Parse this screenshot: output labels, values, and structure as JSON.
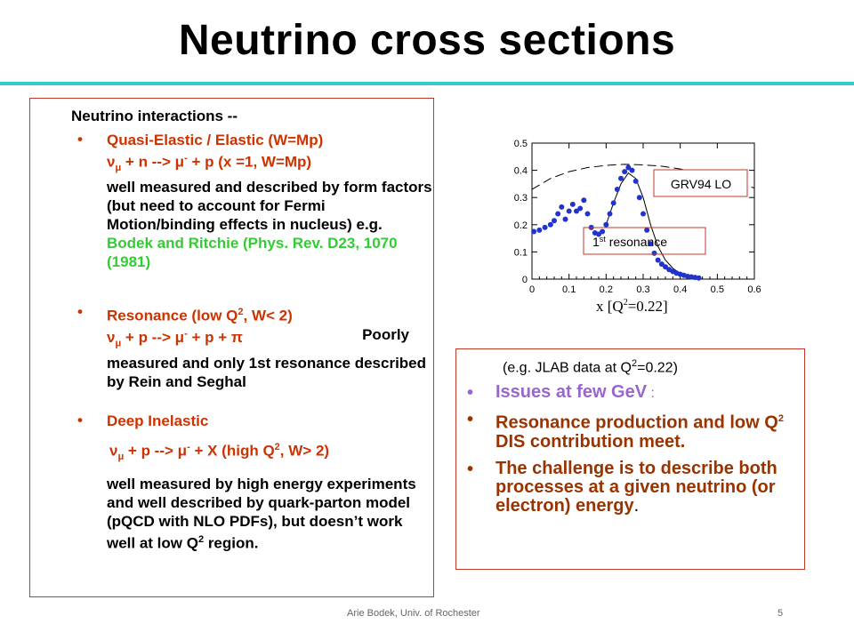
{
  "slide": {
    "title": "Neutrino cross sections",
    "footer_left": "Arie Bodek,  Univ. of Rochester",
    "page_number": "5"
  },
  "left": {
    "heading": "Neutrino interactions --",
    "b1": {
      "l1": "Quasi-Elastic / Elastic    (W=Mp)",
      "l2_nu": "ν",
      "l2_mu": "μ",
      "l2_a": " + n   -->  ",
      "l2_mu2": "μ",
      "l2_minus": "-",
      "l2_b": " + p    (x =1, W=Mp)",
      "black": "well  measured and described by form factors (but need to account for Fermi Motion/binding effects in nucleus)   e.g.",
      "green": " Bodek and Ritchie (Phys. Rev. D23, 1070 (1981)"
    },
    "b2": {
      "l1a": "Resonance        (low Q",
      "l1_sup": "2",
      "l1b": ", W< 2)",
      "l2_nu": "ν",
      "l2_mu": "μ",
      "l2_a": " + p -->  ",
      "l2_mu2": "μ",
      "l2_minus": "-",
      "l2_b": " + p + ",
      "l2_pi": "π",
      "poorly": "Poorly",
      "black": "measured and only 1st resonance described by Rein and Seghal"
    },
    "b3": {
      "l1": "Deep Inelastic",
      "l2_nu": "ν",
      "l2_mu": "μ",
      "l2_a": " + p   -->  ",
      "l2_mu2": "μ",
      "l2_minus": "-",
      "l2_b": " + X    (high Q",
      "l2_sup": "2",
      "l2_c": ", W> 2)",
      "black1": "well measured by high energy experiments and well described by quark-parton model (pQCD with NLO PDFs), but doesn’t work well at low Q",
      "black_sup": "2",
      "black2": " region."
    }
  },
  "right": {
    "note_a": "(e.g. JLAB data  at Q",
    "note_sup": "2",
    "note_b": "=0.22)",
    "i1": "Issues at few GeV",
    "i1_colon": " :",
    "i2a": "Resonance production  and low Q",
    "i2_sup": "2",
    "i2b": " DIS contribution meet.",
    "i3a": "The challenge is to describe both processes at a given neutrino (or electron) energy",
    "i3b": "."
  },
  "chart_data": {
    "type": "scatter",
    "xlabel_a": "x  [Q",
    "xlabel_sup": "2",
    "xlabel_b": "=0.22]",
    "xlim": [
      0,
      0.6
    ],
    "ylim": [
      0,
      0.5
    ],
    "x_ticks": [
      "0",
      "0.1",
      "0.2",
      "0.3",
      "0.4",
      "0.5",
      "0.6"
    ],
    "y_ticks": [
      "0",
      "0.1",
      "0.2",
      "0.3",
      "0.4",
      "0.5"
    ],
    "annotations": {
      "grv": "GRV94 LO",
      "res_a": "1",
      "res_sup": "st",
      "res_b": " resonance"
    },
    "series": [
      {
        "values_x": [
          0.005,
          0.02,
          0.035,
          0.05,
          0.06,
          0.07,
          0.08,
          0.09,
          0.1,
          0.11,
          0.12,
          0.13,
          0.14,
          0.15,
          0.16,
          0.17,
          0.18,
          0.19,
          0.2,
          0.21,
          0.22,
          0.23,
          0.24,
          0.25,
          0.26,
          0.27,
          0.28,
          0.29,
          0.3,
          0.31,
          0.32,
          0.33,
          0.34,
          0.35,
          0.36,
          0.37,
          0.38,
          0.39,
          0.4,
          0.41,
          0.42,
          0.43,
          0.44,
          0.45
        ],
        "values_y": [
          0.175,
          0.18,
          0.19,
          0.2,
          0.215,
          0.24,
          0.265,
          0.22,
          0.25,
          0.275,
          0.25,
          0.26,
          0.29,
          0.24,
          0.19,
          0.17,
          0.165,
          0.175,
          0.2,
          0.24,
          0.28,
          0.33,
          0.37,
          0.395,
          0.41,
          0.4,
          0.36,
          0.3,
          0.24,
          0.18,
          0.13,
          0.095,
          0.07,
          0.055,
          0.045,
          0.035,
          0.028,
          0.022,
          0.018,
          0.014,
          0.01,
          0.008,
          0.006,
          0.004
        ]
      },
      {
        "values_x": [
          0.0,
          0.05,
          0.1,
          0.15,
          0.2,
          0.25,
          0.3,
          0.35,
          0.4,
          0.45,
          0.5,
          0.55,
          0.6
        ],
        "values_y": [
          0.33,
          0.37,
          0.395,
          0.41,
          0.418,
          0.422,
          0.42,
          0.415,
          0.405,
          0.39,
          0.375,
          0.355,
          0.335
        ]
      },
      {
        "values_x": [
          0.2,
          0.22,
          0.24,
          0.26,
          0.28,
          0.3,
          0.32,
          0.34,
          0.36,
          0.38,
          0.4,
          0.42,
          0.44,
          0.46
        ],
        "values_y": [
          0.2,
          0.28,
          0.35,
          0.39,
          0.37,
          0.3,
          0.2,
          0.12,
          0.07,
          0.04,
          0.02,
          0.01,
          0.005,
          0.0
        ]
      }
    ]
  }
}
